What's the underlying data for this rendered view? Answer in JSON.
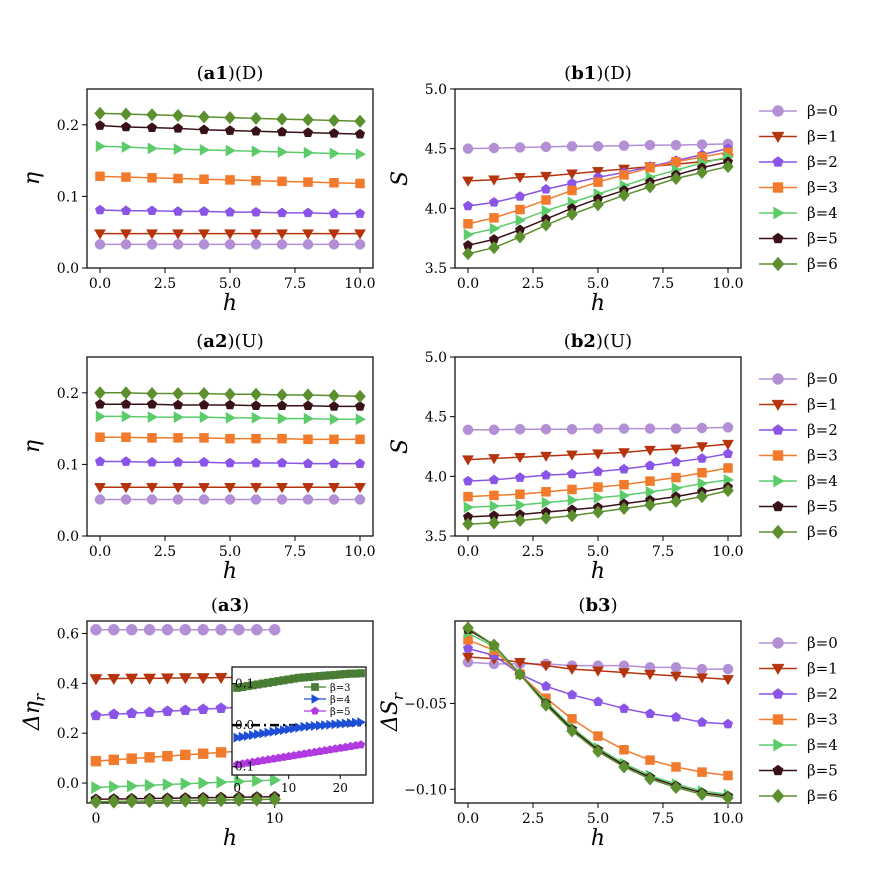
{
  "chart_data": [
    {
      "id": "a1",
      "type": "line",
      "title_bold": "a1",
      "title_rest": "(D)",
      "xlabel": "h",
      "ylabel": "η",
      "xlim": [
        -0.5,
        10.5
      ],
      "ylim": [
        0,
        0.25
      ],
      "xticks": [
        "0.0",
        "2.5",
        "5.0",
        "7.5",
        "10.0"
      ],
      "yticks": [
        "0.0",
        "0.1",
        "0.2"
      ],
      "x": [
        0,
        1,
        2,
        3,
        4,
        5,
        6,
        7,
        8,
        9,
        10
      ],
      "series": [
        {
          "name": "β=0",
          "values": [
            0.033,
            0.033,
            0.033,
            0.033,
            0.033,
            0.033,
            0.033,
            0.033,
            0.033,
            0.033,
            0.033
          ]
        },
        {
          "name": "β=1",
          "values": [
            0.048,
            0.048,
            0.048,
            0.048,
            0.048,
            0.048,
            0.048,
            0.048,
            0.048,
            0.048,
            0.048
          ]
        },
        {
          "name": "β=2",
          "values": [
            0.081,
            0.08,
            0.08,
            0.079,
            0.079,
            0.078,
            0.078,
            0.077,
            0.077,
            0.076,
            0.076
          ]
        },
        {
          "name": "β=3",
          "values": [
            0.128,
            0.127,
            0.126,
            0.125,
            0.124,
            0.123,
            0.122,
            0.121,
            0.12,
            0.119,
            0.118
          ]
        },
        {
          "name": "β=4",
          "values": [
            0.17,
            0.169,
            0.167,
            0.166,
            0.165,
            0.164,
            0.163,
            0.162,
            0.161,
            0.16,
            0.159
          ]
        },
        {
          "name": "β=5",
          "values": [
            0.199,
            0.197,
            0.196,
            0.195,
            0.193,
            0.192,
            0.191,
            0.19,
            0.189,
            0.188,
            0.187
          ]
        },
        {
          "name": "β=6",
          "values": [
            0.216,
            0.215,
            0.214,
            0.213,
            0.211,
            0.21,
            0.209,
            0.208,
            0.207,
            0.206,
            0.205
          ]
        }
      ]
    },
    {
      "id": "b1",
      "type": "line",
      "title_bold": "b1",
      "title_rest": "(D)",
      "xlabel": "h",
      "ylabel": "S",
      "xlim": [
        -0.5,
        10.5
      ],
      "ylim": [
        3.5,
        5.0
      ],
      "xticks": [
        "0.0",
        "2.5",
        "5.0",
        "7.5",
        "10.0"
      ],
      "yticks": [
        "3.5",
        "4.0",
        "4.5",
        "5.0"
      ],
      "x": [
        0,
        1,
        2,
        3,
        4,
        5,
        6,
        7,
        8,
        9,
        10
      ],
      "series": [
        {
          "name": "β=0",
          "values": [
            4.5,
            4.505,
            4.51,
            4.515,
            4.52,
            4.52,
            4.525,
            4.53,
            4.53,
            4.535,
            4.54
          ]
        },
        {
          "name": "β=1",
          "values": [
            4.23,
            4.24,
            4.26,
            4.27,
            4.29,
            4.31,
            4.33,
            4.35,
            4.37,
            4.39,
            4.42
          ]
        },
        {
          "name": "β=2",
          "values": [
            4.02,
            4.05,
            4.1,
            4.16,
            4.21,
            4.26,
            4.3,
            4.35,
            4.4,
            4.45,
            4.5
          ]
        },
        {
          "name": "β=3",
          "values": [
            3.87,
            3.92,
            3.99,
            4.07,
            4.15,
            4.22,
            4.28,
            4.34,
            4.39,
            4.43,
            4.47
          ]
        },
        {
          "name": "β=4",
          "values": [
            3.78,
            3.83,
            3.9,
            3.98,
            4.05,
            4.12,
            4.19,
            4.26,
            4.32,
            4.38,
            4.43
          ]
        },
        {
          "name": "β=5",
          "values": [
            3.69,
            3.74,
            3.82,
            3.91,
            4.0,
            4.08,
            4.15,
            4.22,
            4.28,
            4.34,
            4.39
          ]
        },
        {
          "name": "β=6",
          "values": [
            3.62,
            3.67,
            3.76,
            3.86,
            3.95,
            4.03,
            4.11,
            4.18,
            4.25,
            4.3,
            4.35
          ]
        }
      ],
      "legend": "right"
    },
    {
      "id": "a2",
      "type": "line",
      "title_bold": "a2",
      "title_rest": "(U)",
      "xlabel": "h",
      "ylabel": "η",
      "xlim": [
        -0.5,
        10.5
      ],
      "ylim": [
        0,
        0.25
      ],
      "xticks": [
        "0.0",
        "2.5",
        "5.0",
        "7.5",
        "10.0"
      ],
      "yticks": [
        "0.0",
        "0.1",
        "0.2"
      ],
      "x": [
        0,
        1,
        2,
        3,
        4,
        5,
        6,
        7,
        8,
        9,
        10
      ],
      "series": [
        {
          "name": "β=0",
          "values": [
            0.051,
            0.051,
            0.051,
            0.051,
            0.051,
            0.051,
            0.051,
            0.051,
            0.051,
            0.051,
            0.051
          ]
        },
        {
          "name": "β=1",
          "values": [
            0.068,
            0.068,
            0.068,
            0.068,
            0.068,
            0.068,
            0.068,
            0.068,
            0.068,
            0.068,
            0.068
          ]
        },
        {
          "name": "β=2",
          "values": [
            0.104,
            0.104,
            0.103,
            0.103,
            0.103,
            0.102,
            0.102,
            0.102,
            0.101,
            0.101,
            0.101
          ]
        },
        {
          "name": "β=3",
          "values": [
            0.138,
            0.138,
            0.137,
            0.137,
            0.137,
            0.136,
            0.136,
            0.136,
            0.135,
            0.135,
            0.135
          ]
        },
        {
          "name": "β=4",
          "values": [
            0.167,
            0.167,
            0.166,
            0.166,
            0.166,
            0.165,
            0.165,
            0.164,
            0.164,
            0.163,
            0.163
          ]
        },
        {
          "name": "β=5",
          "values": [
            0.184,
            0.184,
            0.184,
            0.183,
            0.183,
            0.183,
            0.182,
            0.182,
            0.182,
            0.181,
            0.181
          ]
        },
        {
          "name": "β=6",
          "values": [
            0.2,
            0.2,
            0.199,
            0.199,
            0.199,
            0.198,
            0.198,
            0.197,
            0.197,
            0.196,
            0.195
          ]
        }
      ]
    },
    {
      "id": "b2",
      "type": "line",
      "title_bold": "b2",
      "title_rest": "(U)",
      "xlabel": "h",
      "ylabel": "S",
      "xlim": [
        -0.5,
        10.5
      ],
      "ylim": [
        3.5,
        5.0
      ],
      "xticks": [
        "0.0",
        "2.5",
        "5.0",
        "7.5",
        "10.0"
      ],
      "yticks": [
        "3.5",
        "4.0",
        "4.5",
        "5.0"
      ],
      "x": [
        0,
        1,
        2,
        3,
        4,
        5,
        6,
        7,
        8,
        9,
        10
      ],
      "series": [
        {
          "name": "β=0",
          "values": [
            4.39,
            4.39,
            4.395,
            4.395,
            4.395,
            4.4,
            4.4,
            4.4,
            4.4,
            4.405,
            4.41
          ]
        },
        {
          "name": "β=1",
          "values": [
            4.14,
            4.15,
            4.16,
            4.17,
            4.18,
            4.19,
            4.2,
            4.22,
            4.23,
            4.25,
            4.27
          ]
        },
        {
          "name": "β=2",
          "values": [
            3.96,
            3.97,
            3.99,
            4.01,
            4.02,
            4.04,
            4.06,
            4.09,
            4.12,
            4.15,
            4.19
          ]
        },
        {
          "name": "β=3",
          "values": [
            3.83,
            3.84,
            3.85,
            3.87,
            3.89,
            3.91,
            3.93,
            3.96,
            3.99,
            4.03,
            4.07
          ]
        },
        {
          "name": "β=4",
          "values": [
            3.74,
            3.75,
            3.76,
            3.78,
            3.8,
            3.82,
            3.84,
            3.87,
            3.9,
            3.94,
            3.97
          ]
        },
        {
          "name": "β=5",
          "values": [
            3.66,
            3.67,
            3.68,
            3.7,
            3.72,
            3.74,
            3.77,
            3.8,
            3.83,
            3.87,
            3.91
          ]
        },
        {
          "name": "β=6",
          "values": [
            3.6,
            3.61,
            3.63,
            3.65,
            3.67,
            3.7,
            3.73,
            3.76,
            3.79,
            3.83,
            3.88
          ]
        }
      ],
      "legend": "right"
    },
    {
      "id": "a3",
      "type": "line",
      "title_bold": "a3",
      "title_rest": "",
      "xlabel": "h",
      "ylabel": "Δη_r",
      "xlim": [
        -0.5,
        15.5
      ],
      "ylim": [
        -0.08,
        0.65
      ],
      "xticks": [
        "0",
        "10"
      ],
      "yticks": [
        "0.0",
        "0.2",
        "0.4",
        "0.6"
      ],
      "x": [
        0,
        1,
        2,
        3,
        4,
        5,
        6,
        7,
        8,
        9,
        10
      ],
      "series": [
        {
          "name": "β=0",
          "values": [
            0.615,
            0.615,
            0.615,
            0.615,
            0.615,
            0.615,
            0.615,
            0.615,
            0.615,
            0.615,
            0.615
          ]
        },
        {
          "name": "β=1",
          "values": [
            0.418,
            0.419,
            0.42,
            0.42,
            0.421,
            0.422,
            0.422,
            0.423,
            0.424,
            0.424,
            0.425
          ]
        },
        {
          "name": "β=2",
          "values": [
            0.271,
            0.276,
            0.28,
            0.284,
            0.288,
            0.292,
            0.296,
            0.3,
            0.304,
            0.308,
            0.312
          ]
        },
        {
          "name": "β=3",
          "values": [
            0.088,
            0.093,
            0.098,
            0.103,
            0.108,
            0.113,
            0.118,
            0.123,
            0.128,
            0.133,
            0.138
          ]
        },
        {
          "name": "β=4",
          "values": [
            -0.018,
            -0.015,
            -0.012,
            -0.009,
            -0.006,
            -0.003,
            0.0,
            0.003,
            0.006,
            0.009,
            0.012
          ]
        },
        {
          "name": "β=5",
          "values": [
            -0.065,
            -0.064,
            -0.063,
            -0.062,
            -0.061,
            -0.06,
            -0.059,
            -0.058,
            -0.057,
            -0.056,
            -0.055
          ]
        },
        {
          "name": "β=6",
          "values": [
            -0.075,
            -0.074,
            -0.073,
            -0.072,
            -0.071,
            -0.07,
            -0.069,
            -0.068,
            -0.067,
            -0.066,
            -0.065
          ]
        }
      ],
      "inset": {
        "xlim": [
          -1,
          25
        ],
        "ylim": [
          -0.12,
          0.14
        ],
        "xticks": [
          "0",
          "10",
          "20"
        ],
        "yticks": [
          "0.1",
          "0.0",
          "0.1"
        ],
        "hline_y": 0,
        "x": [
          0,
          1,
          2,
          3,
          4,
          5,
          6,
          7,
          8,
          9,
          10,
          11,
          12,
          13,
          14,
          15,
          16,
          17,
          18,
          19,
          20,
          21,
          22,
          23,
          24
        ],
        "series": [
          {
            "name": "β=3",
            "values": [
              0.09,
              0.092,
              0.094,
              0.096,
              0.098,
              0.1,
              0.102,
              0.104,
              0.106,
              0.108,
              0.11,
              0.112,
              0.114,
              0.115,
              0.116,
              0.117,
              0.118,
              0.119,
              0.12,
              0.121,
              0.122,
              0.123,
              0.124,
              0.124,
              0.125
            ]
          },
          {
            "name": "β=4",
            "values": [
              -0.03,
              -0.028,
              -0.026,
              -0.024,
              -0.022,
              -0.02,
              -0.018,
              -0.016,
              -0.014,
              -0.012,
              -0.01,
              -0.008,
              -0.006,
              -0.004,
              -0.003,
              -0.002,
              -0.001,
              0.0,
              0.001,
              0.002,
              0.003,
              0.004,
              0.005,
              0.006,
              0.007
            ]
          },
          {
            "name": "β=5",
            "values": [
              -0.095,
              -0.093,
              -0.091,
              -0.089,
              -0.087,
              -0.085,
              -0.083,
              -0.081,
              -0.079,
              -0.077,
              -0.075,
              -0.073,
              -0.071,
              -0.069,
              -0.067,
              -0.065,
              -0.063,
              -0.061,
              -0.059,
              -0.057,
              -0.055,
              -0.053,
              -0.051,
              -0.049,
              -0.047
            ]
          }
        ]
      }
    },
    {
      "id": "b3",
      "type": "line",
      "title_bold": "b3",
      "title_rest": "",
      "xlabel": "h",
      "ylabel": "ΔS_r",
      "xlim": [
        -0.5,
        10.5
      ],
      "ylim": [
        -0.108,
        -0.002
      ],
      "xticks": [
        "0.0",
        "2.5",
        "5.0",
        "7.5",
        "10.0"
      ],
      "yticks": [
        "−0.05",
        "−0.10"
      ],
      "ytick_values": [
        -0.05,
        -0.1
      ],
      "x": [
        0,
        1,
        2,
        3,
        4,
        5,
        6,
        7,
        8,
        9,
        10
      ],
      "series": [
        {
          "name": "β=0",
          "values": [
            -0.026,
            -0.027,
            -0.027,
            -0.027,
            -0.028,
            -0.028,
            -0.028,
            -0.029,
            -0.029,
            -0.03,
            -0.03
          ]
        },
        {
          "name": "β=1",
          "values": [
            -0.023,
            -0.024,
            -0.026,
            -0.028,
            -0.03,
            -0.031,
            -0.032,
            -0.033,
            -0.034,
            -0.035,
            -0.036
          ]
        },
        {
          "name": "β=2",
          "values": [
            -0.018,
            -0.022,
            -0.033,
            -0.04,
            -0.045,
            -0.049,
            -0.053,
            -0.056,
            -0.058,
            -0.061,
            -0.062
          ]
        },
        {
          "name": "β=3",
          "values": [
            -0.013,
            -0.019,
            -0.033,
            -0.047,
            -0.059,
            -0.069,
            -0.077,
            -0.083,
            -0.087,
            -0.09,
            -0.092
          ]
        },
        {
          "name": "β=4",
          "values": [
            -0.009,
            -0.017,
            -0.033,
            -0.049,
            -0.064,
            -0.076,
            -0.085,
            -0.092,
            -0.097,
            -0.101,
            -0.103
          ]
        },
        {
          "name": "β=5",
          "values": [
            -0.007,
            -0.016,
            -0.033,
            -0.05,
            -0.065,
            -0.077,
            -0.086,
            -0.093,
            -0.098,
            -0.102,
            -0.104
          ]
        },
        {
          "name": "β=6",
          "values": [
            -0.006,
            -0.016,
            -0.033,
            -0.051,
            -0.066,
            -0.078,
            -0.087,
            -0.094,
            -0.099,
            -0.103,
            -0.105
          ]
        }
      ],
      "legend": "right"
    }
  ],
  "style": {
    "colors": [
      "#b38fd6",
      "#b5340d",
      "#8a55e6",
      "#f27a2c",
      "#5ccc6a",
      "#3a1118",
      "#5c8f2e"
    ],
    "inset_colors": [
      "#4a7d34",
      "#1d4ed8",
      "#b03adf"
    ],
    "markers": [
      "circle",
      "triangle-down",
      "pentagon",
      "square",
      "triangle-right",
      "pentagon",
      "diamond"
    ]
  }
}
